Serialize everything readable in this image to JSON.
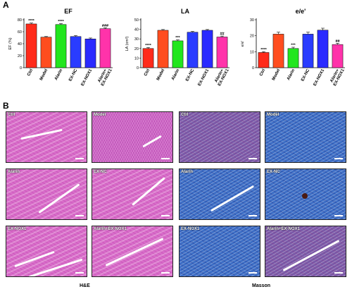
{
  "panel_a_label": "A",
  "panel_b_label": "B",
  "categories": [
    "Ctrl",
    "Model",
    "Alarin",
    "EX-NC",
    "EX-NOX1",
    "Alarin+ EX-NOX1"
  ],
  "colors": [
    "#ff2a1a",
    "#ff4d1f",
    "#22e61e",
    "#2a3cff",
    "#2a2aff",
    "#ff33aa"
  ],
  "chart_data": [
    {
      "type": "bar",
      "title": "EF",
      "ylabel": "EF (%)",
      "ylim": [
        0,
        80
      ],
      "yticks": [
        "0",
        "20",
        "40",
        "60",
        "80"
      ],
      "categories": [
        "Ctrl",
        "Model",
        "Alarin",
        "EX-NC",
        "EX-NOX1",
        "Alarin+ EX-NOX1"
      ],
      "values": [
        73,
        51,
        72,
        52,
        48,
        65
      ],
      "errors": [
        1.5,
        1,
        1.5,
        1.5,
        1.5,
        1.5
      ],
      "significance": [
        "****",
        "",
        "****",
        "",
        "",
        "###"
      ]
    },
    {
      "type": "bar",
      "title": "LA",
      "ylabel": "LA (cm²)",
      "ylim": [
        0,
        50
      ],
      "yticks": [
        "0",
        "10",
        "20",
        "30",
        "40",
        "50"
      ],
      "categories": [
        "Ctrl",
        "Model",
        "Alarin",
        "EX-NC",
        "EX-NOX1",
        "Alarin+ EX-NOX1"
      ],
      "values": [
        20,
        39,
        28,
        37,
        39,
        32
      ],
      "errors": [
        1,
        0.8,
        1,
        0.8,
        0.8,
        1
      ],
      "significance": [
        "****",
        "",
        "***",
        "",
        "",
        "##"
      ]
    },
    {
      "type": "bar",
      "title": "e/e'",
      "ylabel": "e/e'",
      "ylim": [
        0,
        30
      ],
      "yticks": [
        "0",
        "10",
        "20",
        "30"
      ],
      "categories": [
        "Ctrl",
        "Model",
        "Alarin",
        "EX-NC",
        "EX-NOX1",
        "Alarin+ EX-NOX1"
      ],
      "values": [
        9.5,
        21,
        12,
        21,
        23.5,
        14.5
      ],
      "errors": [
        0.5,
        1.2,
        0.8,
        1.2,
        1.2,
        0.8
      ],
      "significance": [
        "****",
        "",
        "***",
        "",
        "",
        "##"
      ]
    }
  ],
  "he_tiles": [
    "Ctrl",
    "Model",
    "Alarin",
    "EX-NC",
    "EX-NOX1",
    "Alarin+EX-NOX1"
  ],
  "masson_tiles": [
    "Ctrl",
    "Model",
    "Alarin",
    "EX-NC",
    "EX-NOX1",
    "Alarin+EX-NOX1"
  ],
  "he_label": "H&E",
  "masson_label": "Masson"
}
